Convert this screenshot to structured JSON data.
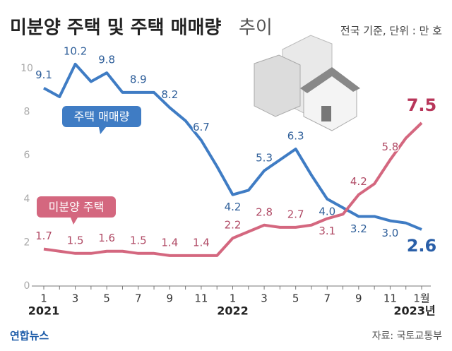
{
  "chart_data": {
    "type": "line",
    "title": "미분양 주택 및 주택 매매량",
    "title_suffix": "추이",
    "subtitle": "전국 기준, 단위 : 만 호",
    "source": "자료: 국토교통부",
    "logo": "연합뉴스",
    "categories": [
      "1",
      null,
      "3",
      null,
      "5",
      null,
      "7",
      null,
      "9",
      null,
      "11",
      null,
      "1",
      null,
      "3",
      null,
      "5",
      null,
      "7",
      null,
      "9",
      null,
      "11",
      null,
      "1월"
    ],
    "year_labels": [
      "2021",
      "2022",
      "2023년"
    ],
    "ylim": [
      0,
      10
    ],
    "yticks": [
      0,
      2,
      4,
      6,
      8,
      10
    ],
    "grid": false,
    "series": [
      {
        "name": "주택 매매량",
        "color": "#3f7cc4",
        "values": [
          9.1,
          8.7,
          10.2,
          9.4,
          9.8,
          8.9,
          8.9,
          8.9,
          8.2,
          7.6,
          6.7,
          5.5,
          4.2,
          4.4,
          5.3,
          5.8,
          6.3,
          5.1,
          4.0,
          3.6,
          3.2,
          3.2,
          3.0,
          2.9,
          2.6
        ],
        "value_labels": [
          "9.1",
          null,
          "10.2",
          null,
          "9.8",
          null,
          "8.9",
          null,
          "8.2",
          null,
          "6.7",
          null,
          "4.2",
          null,
          "5.3",
          null,
          "6.3",
          null,
          "4.0",
          null,
          "3.2",
          null,
          "3.0",
          null,
          "2.6"
        ]
      },
      {
        "name": "미분양 주택",
        "color": "#d4677f",
        "values": [
          1.7,
          1.6,
          1.5,
          1.5,
          1.6,
          1.6,
          1.5,
          1.5,
          1.4,
          1.4,
          1.4,
          1.4,
          2.2,
          2.5,
          2.8,
          2.7,
          2.7,
          2.8,
          3.1,
          3.3,
          4.2,
          4.7,
          5.8,
          6.8,
          7.5
        ],
        "value_labels": [
          "1.7",
          null,
          "1.5",
          null,
          "1.6",
          null,
          "1.5",
          null,
          "1.4",
          null,
          "1.4",
          null,
          "2.2",
          null,
          "2.8",
          null,
          "2.7",
          null,
          "3.1",
          null,
          "4.2",
          null,
          "5.8",
          null,
          "7.5"
        ]
      }
    ]
  }
}
